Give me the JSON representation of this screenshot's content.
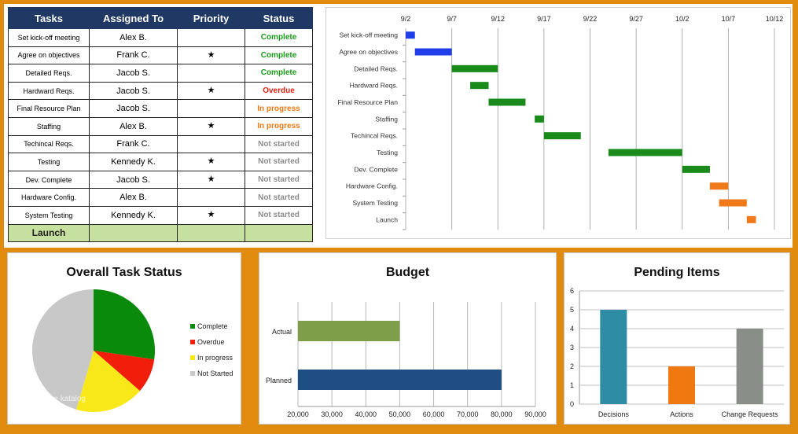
{
  "table": {
    "headers": [
      "Tasks",
      "Assigned To",
      "Priority",
      "Status"
    ],
    "rows": [
      {
        "task": "Set kick-off meeting",
        "assigned": "Alex B.",
        "priority": "",
        "status": "Complete",
        "color": "#1a9a1a"
      },
      {
        "task": "Agree on objectives",
        "assigned": "Frank C.",
        "priority": "★",
        "status": "Complete",
        "color": "#1a9a1a"
      },
      {
        "task": "Detailed Reqs.",
        "assigned": "Jacob S.",
        "priority": "",
        "status": "Complete",
        "color": "#1a9a1a"
      },
      {
        "task": "Hardward Reqs.",
        "assigned": "Jacob S.",
        "priority": "★",
        "status": "Overdue",
        "color": "#e02010"
      },
      {
        "task": "Final Resource Plan",
        "assigned": "Jacob S.",
        "priority": "",
        "status": "In progress",
        "color": "#f07810"
      },
      {
        "task": "Staffing",
        "assigned": "Alex B.",
        "priority": "★",
        "status": "In progress",
        "color": "#f07810"
      },
      {
        "task": "Techincal Reqs.",
        "assigned": "Frank C.",
        "priority": "",
        "status": "Not started",
        "color": "#8c8c8c"
      },
      {
        "task": "Testing",
        "assigned": "Kennedy K.",
        "priority": "★",
        "status": "Not started",
        "color": "#8c8c8c"
      },
      {
        "task": "Dev. Complete",
        "assigned": "Jacob S.",
        "priority": "★",
        "status": "Not started",
        "color": "#8c8c8c"
      },
      {
        "task": "Hardware Config.",
        "assigned": "Alex B.",
        "priority": "",
        "status": "Not started",
        "color": "#8c8c8c"
      },
      {
        "task": "System Testing",
        "assigned": "Kennedy K.",
        "priority": "★",
        "status": "Not started",
        "color": "#8c8c8c"
      }
    ],
    "launch_label": "Launch"
  },
  "chart_data": [
    {
      "type": "gantt",
      "x_ticks": [
        "9/2",
        "9/7",
        "9/12",
        "9/17",
        "9/22",
        "9/27",
        "10/2",
        "10/7",
        "10/12"
      ],
      "xlim": [
        "9/2",
        "10/12"
      ],
      "tasks": [
        {
          "name": "Set kick-off meeting",
          "start": "9/2",
          "end": "9/3",
          "color": "#1f3ee8"
        },
        {
          "name": "Agree on objectives",
          "start": "9/3",
          "end": "9/7",
          "color": "#1f3ee8"
        },
        {
          "name": "Detailed Reqs.",
          "start": "9/7",
          "end": "9/12",
          "color": "#1a8a1a"
        },
        {
          "name": "Hardward Reqs.",
          "start": "9/9",
          "end": "9/11",
          "color": "#1a8a1a"
        },
        {
          "name": "Final Resource Plan",
          "start": "9/11",
          "end": "9/15",
          "color": "#1a8a1a"
        },
        {
          "name": "Staffing",
          "start": "9/16",
          "end": "9/17",
          "color": "#1a8a1a"
        },
        {
          "name": "Techincal Reqs.",
          "start": "9/17",
          "end": "9/21",
          "color": "#1a8a1a"
        },
        {
          "name": "Testing",
          "start": "9/24",
          "end": "10/2",
          "color": "#1a8a1a"
        },
        {
          "name": "Dev. Complete",
          "start": "10/2",
          "end": "10/5",
          "color": "#1a8a1a"
        },
        {
          "name": "Hardware Config.",
          "start": "10/5",
          "end": "10/7",
          "color": "#f07a1a"
        },
        {
          "name": "System Testing",
          "start": "10/6",
          "end": "10/9",
          "color": "#f07a1a"
        },
        {
          "name": "Launch",
          "start": "10/9",
          "end": "10/10",
          "color": "#f07a1a"
        }
      ],
      "grid": true
    },
    {
      "type": "pie",
      "title": "Overall Task Status",
      "labels": [
        "Complete",
        "Overdue",
        "In progress",
        "Not Started"
      ],
      "values": [
        3,
        1,
        2,
        5
      ],
      "colors": [
        "#0a8a0a",
        "#f01e0a",
        "#f8e81a",
        "#c8c8c8"
      ],
      "legend": "right"
    },
    {
      "type": "bar",
      "orientation": "horizontal",
      "title": "Budget",
      "categories": [
        "Actual",
        "Planned"
      ],
      "values": [
        50000,
        80000
      ],
      "colors": [
        "#7e9e4a",
        "#1f4e84"
      ],
      "x_ticks": [
        "20,000",
        "30,000",
        "40,000",
        "50,000",
        "60,000",
        "70,000",
        "80,000",
        "90,000"
      ],
      "xlim": [
        20000,
        90000
      ],
      "grid": true
    },
    {
      "type": "bar",
      "title": "Pending Items",
      "categories": [
        "Decisions",
        "Actions",
        "Change Requests"
      ],
      "values": [
        5,
        2,
        4
      ],
      "colors": [
        "#2e8ca4",
        "#f07810",
        "#8a8e88"
      ],
      "y_ticks": [
        "0",
        "1",
        "2",
        "3",
        "4",
        "5",
        "6"
      ],
      "ylim": [
        0,
        6
      ],
      "grid": true
    }
  ],
  "pie_watermark": "Vorlage katalog"
}
